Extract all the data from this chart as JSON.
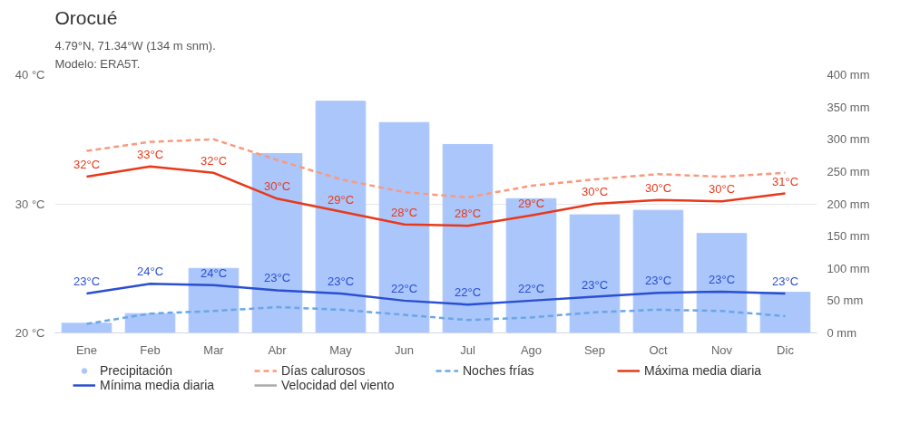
{
  "chart_data": {
    "type": "line",
    "title": "Orocué",
    "subtitle": "4.79°N, 71.34°W (134 m snm).\nModelo: ERA5T.",
    "categories": [
      "Ene",
      "Feb",
      "Mar",
      "Abr",
      "May",
      "Jun",
      "Jul",
      "Ago",
      "Sep",
      "Oct",
      "Nov",
      "Dic"
    ],
    "series": [
      {
        "name": "Precipitación",
        "type": "bar",
        "axis": "y2",
        "color": "#aac6fb",
        "values": [
          15,
          30,
          100,
          278,
          359,
          326,
          292,
          208,
          183,
          190,
          154,
          63
        ]
      },
      {
        "name": "Días calurosos",
        "line_style": "dashed",
        "color": "#f99a7e",
        "values": [
          34.1,
          34.8,
          35.0,
          33.4,
          31.9,
          30.9,
          30.5,
          31.4,
          31.9,
          32.3,
          32.1,
          32.4
        ]
      },
      {
        "name": "Noches frías",
        "line_style": "dashed",
        "color": "#6aa6e8",
        "values": [
          20.7,
          21.5,
          21.7,
          22.0,
          21.8,
          21.4,
          21.0,
          21.2,
          21.6,
          21.8,
          21.7,
          21.3
        ]
      },
      {
        "name": "Máxima media diaria",
        "line_style": "solid",
        "color": "#e8391b",
        "values": [
          32.1,
          32.9,
          32.4,
          30.4,
          29.4,
          28.4,
          28.3,
          29.1,
          30.0,
          30.3,
          30.2,
          30.8
        ],
        "value_labels": [
          "32°C",
          "33°C",
          "32°C",
          "30°C",
          "29°C",
          "28°C",
          "28°C",
          "29°C",
          "30°C",
          "30°C",
          "30°C",
          "31°C"
        ]
      },
      {
        "name": "Mínima media diaria",
        "line_style": "solid",
        "color": "#2a4fd0",
        "values": [
          23.05,
          23.8,
          23.7,
          23.3,
          23.05,
          22.5,
          22.2,
          22.5,
          22.8,
          23.1,
          23.2,
          23.05
        ],
        "value_labels": [
          "23°C",
          "24°C",
          "24°C",
          "23°C",
          "23°C",
          "22°C",
          "22°C",
          "22°C",
          "23°C",
          "23°C",
          "23°C",
          "23°C"
        ]
      },
      {
        "name": "Velocidad del viento",
        "line_style": "solid",
        "color": "#aaaaaa",
        "values": [
          null,
          null,
          null,
          null,
          null,
          null,
          null,
          null,
          null,
          null,
          null,
          null
        ]
      }
    ],
    "ylim": [
      20,
      40
    ],
    "yticks": [
      {
        "value": 20,
        "label": "20 °C"
      },
      {
        "value": 30,
        "label": "30 °C"
      },
      {
        "value": 40,
        "label": "40 °C"
      }
    ],
    "y2lim": [
      0,
      400
    ],
    "y2ticks": [
      {
        "value": 0,
        "label": "0 mm"
      },
      {
        "value": 50,
        "label": "50 mm"
      },
      {
        "value": 100,
        "label": "100 mm"
      },
      {
        "value": 150,
        "label": "150 mm"
      },
      {
        "value": 200,
        "label": "200 mm"
      },
      {
        "value": 250,
        "label": "250 mm"
      },
      {
        "value": 300,
        "label": "300 mm"
      },
      {
        "value": 350,
        "label": "350 mm"
      },
      {
        "value": 400,
        "label": "400 mm"
      }
    ],
    "grid": "y",
    "legend": "bottom"
  }
}
